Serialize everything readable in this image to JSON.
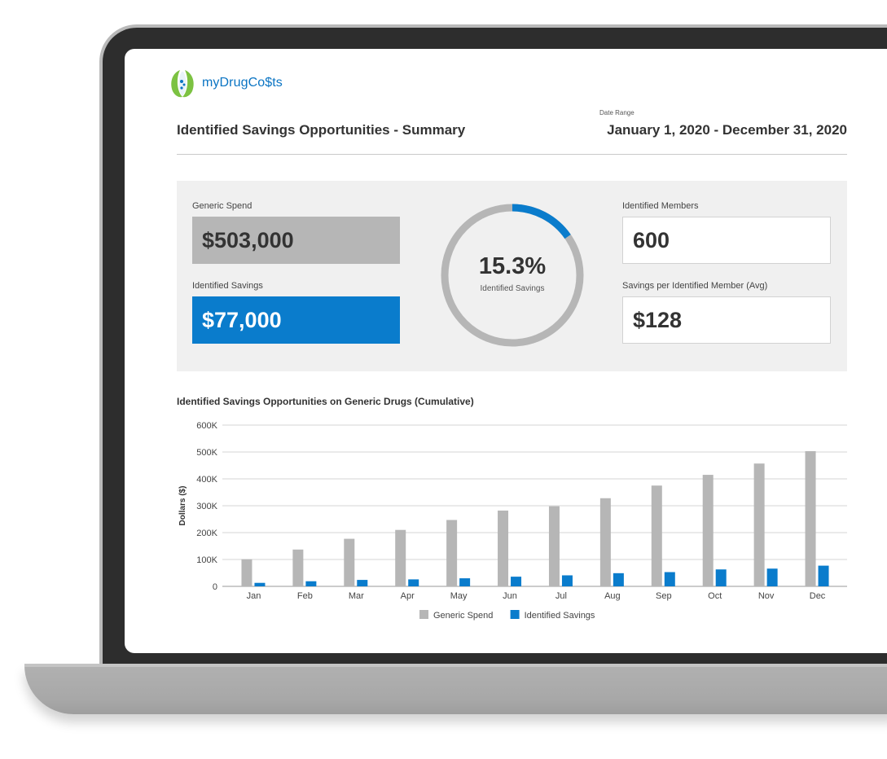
{
  "brand": {
    "name": "myDrugCo$ts"
  },
  "header": {
    "title": "Identified Savings Opportunities - Summary",
    "date_range_label": "Date Range",
    "date_range_value": "January 1, 2020 - December 31, 2020"
  },
  "summary": {
    "generic_spend_label": "Generic Spend",
    "generic_spend_value": "$503,000",
    "identified_savings_label": "Identified Savings",
    "identified_savings_value": "$77,000",
    "donut_percent": "15.3%",
    "donut_fraction": 0.153,
    "donut_label": "Identified Savings",
    "identified_members_label": "Identified Members",
    "identified_members_value": "600",
    "savings_per_member_label": "Savings per Identified Member (Avg)",
    "savings_per_member_value": "$128"
  },
  "colors": {
    "generic": "#b6b6b6",
    "savings": "#0a7ccc",
    "accent": "#0a74c3"
  },
  "chart_data": {
    "type": "bar",
    "title": "Identified Savings Opportunities on Generic Drugs (Cumulative)",
    "ylabel": "Dollars ($)",
    "xlabel": "",
    "ylim": [
      0,
      600000
    ],
    "y_ticks": [
      0,
      100000,
      200000,
      300000,
      400000,
      500000,
      600000
    ],
    "y_tick_labels": [
      "0",
      "100K",
      "200K",
      "300K",
      "400K",
      "500K",
      "600K"
    ],
    "categories": [
      "Jan",
      "Feb",
      "Mar",
      "Apr",
      "May",
      "Jun",
      "Jul",
      "Aug",
      "Sep",
      "Oct",
      "Nov",
      "Dec"
    ],
    "series": [
      {
        "name": "Generic Spend",
        "values": [
          101000,
          137000,
          177000,
          210000,
          247000,
          282000,
          298000,
          328000,
          375000,
          415000,
          457000,
          503000
        ]
      },
      {
        "name": "Identified Savings",
        "values": [
          13000,
          19000,
          24000,
          26000,
          30000,
          36000,
          41000,
          49000,
          53000,
          63000,
          66000,
          77000
        ]
      }
    ],
    "legend_position": "bottom",
    "grid": true
  }
}
